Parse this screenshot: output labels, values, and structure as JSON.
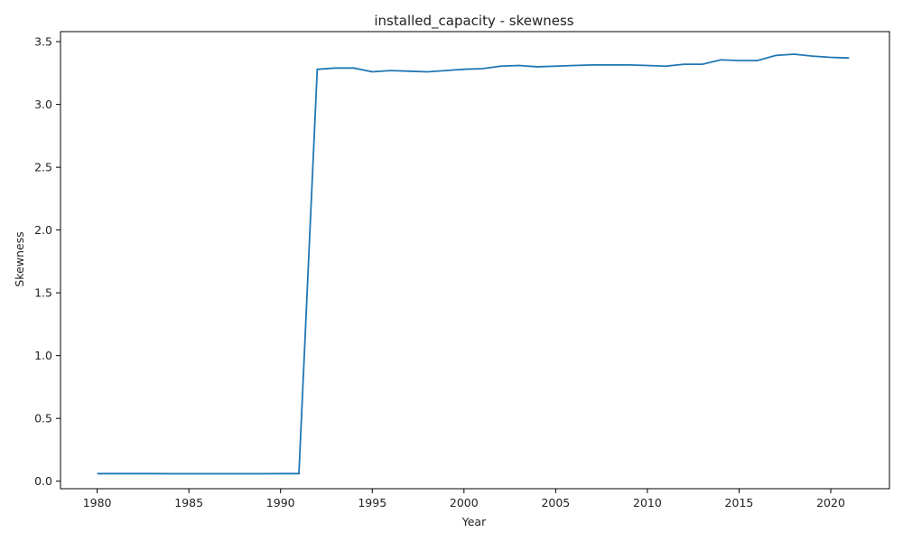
{
  "chart_data": {
    "type": "line",
    "title": "installed_capacity - skewness",
    "xlabel": "Year",
    "ylabel": "Skewness",
    "xlim": [
      1978.0,
      2023.2
    ],
    "ylim": [
      -0.06,
      3.58
    ],
    "xticks": [
      1980,
      1985,
      1990,
      1995,
      2000,
      2005,
      2010,
      2015,
      2020
    ],
    "yticks": [
      0.0,
      0.5,
      1.0,
      1.5,
      2.0,
      2.5,
      3.0,
      3.5
    ],
    "ytick_labels": [
      "0.0",
      "0.5",
      "1.0",
      "1.5",
      "2.0",
      "2.5",
      "3.0",
      "3.5"
    ],
    "grid": false,
    "line_color": "#1f77b4",
    "series": [
      {
        "x": [
          1980,
          1981,
          1982,
          1983,
          1984,
          1985,
          1986,
          1987,
          1988,
          1989,
          1990,
          1991,
          1992,
          1993,
          1994,
          1995,
          1996,
          1997,
          1998,
          1999,
          2000,
          2001,
          2002,
          2003,
          2004,
          2005,
          2006,
          2007,
          2008,
          2009,
          2010,
          2011,
          2012,
          2013,
          2014,
          2015,
          2016,
          2017,
          2018,
          2019,
          2020,
          2021
        ],
        "values": [
          0.06,
          0.06,
          0.06,
          0.06,
          0.059,
          0.059,
          0.059,
          0.059,
          0.059,
          0.059,
          0.06,
          0.06,
          3.28,
          3.29,
          3.29,
          3.26,
          3.27,
          3.265,
          3.26,
          3.27,
          3.28,
          3.285,
          3.305,
          3.31,
          3.3,
          3.305,
          3.31,
          3.315,
          3.315,
          3.315,
          3.31,
          3.305,
          3.32,
          3.32,
          3.355,
          3.35,
          3.35,
          3.39,
          3.4,
          3.385,
          3.375,
          3.37
        ]
      }
    ]
  }
}
